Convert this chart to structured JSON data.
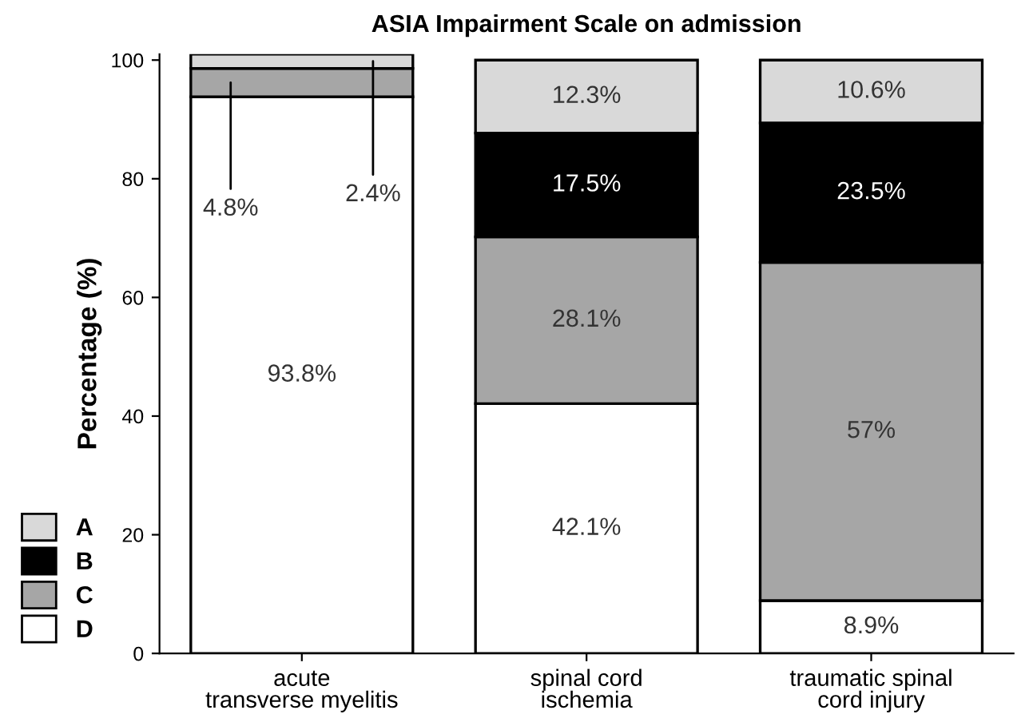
{
  "chart_data": {
    "type": "bar",
    "stacked": true,
    "title": "ASIA Impairment Scale on admission",
    "ylabel": "Percentage (%)",
    "categories": [
      "acute\ntransverse myelitis",
      "spinal cord\nischemia",
      "traumatic spinal\ncord injury"
    ],
    "series": [
      {
        "name": "D",
        "color": "#ffffff",
        "values": [
          93.8,
          42.1,
          8.9
        ],
        "value_labels": [
          "93.8%",
          "42.1%",
          "8.9%"
        ]
      },
      {
        "name": "C",
        "color": "#a6a6a6",
        "values": [
          4.8,
          28.1,
          57
        ],
        "value_labels": [
          "4.8%",
          "28.1%",
          "57%"
        ]
      },
      {
        "name": "B",
        "color": "#000000",
        "values": [
          0,
          17.5,
          23.5
        ],
        "value_labels": [
          null,
          "17.5%",
          "23.5%"
        ]
      },
      {
        "name": "A",
        "color": "#d9d9d9",
        "values": [
          2.4,
          12.3,
          10.6
        ],
        "value_labels": [
          "2.4%",
          "12.3%",
          "10.6%"
        ]
      }
    ],
    "ylim": [
      0,
      101
    ],
    "yticks": [
      0,
      20,
      40,
      60,
      80,
      100
    ],
    "grid": false,
    "legend": "bottom left"
  }
}
